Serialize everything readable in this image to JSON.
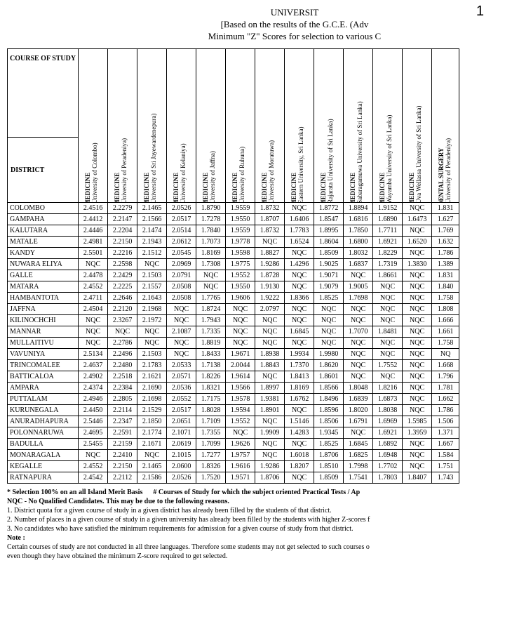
{
  "page_number": "1",
  "title_lines": [
    "UNIVERSIT",
    "[Based on the results of the G.C.E. (Adv",
    "Minimum \"Z\" Scores for selection to various C"
  ],
  "corner_top": "COURSE OF STUDY",
  "corner_left": "DISTRICT",
  "columns": [
    {
      "main": "MEDICINE",
      "sub": "(University of Colombo)"
    },
    {
      "main": "MEDICINE",
      "sub": "(University of Peradeniya)"
    },
    {
      "main": "MEDICINE",
      "sub": "(University of Sri Jayewardenepura)"
    },
    {
      "main": "MEDICINE",
      "sub": "(University of Kelaniya)"
    },
    {
      "main": "MEDICINE",
      "sub": "(University of Jaffna)"
    },
    {
      "main": "MEDICINE",
      "sub": "(University of Ruhuna)"
    },
    {
      "main": "MEDICINE",
      "sub": "(University of Moratuwa)"
    },
    {
      "main": "MEDICINE",
      "sub": "(Eastern University, Sri Lanka)"
    },
    {
      "main": "MEDICINE",
      "sub": "(Rajarata University of Sri Lanka)"
    },
    {
      "main": "MEDICINE",
      "sub": "(Sabaragamuwa University of Sri Lanka)"
    },
    {
      "main": "MEDICINE",
      "sub": "(Wayamba University of Sri Lanka)"
    },
    {
      "main": "MEDICINE",
      "sub": "(Uva Wellassa University of Sri Lanka)"
    },
    {
      "main": "DENTAL SURGERY",
      "sub": "(University of Peradeniya)"
    }
  ],
  "rows": [
    {
      "d": "COLOMBO",
      "v": [
        "2.4516",
        "2.2279",
        "2.1465",
        "2.0526",
        "1.8790",
        "1.9559",
        "1.8732",
        "NQC",
        "1.8772",
        "1.8894",
        "1.9152",
        "NQC",
        "1.831"
      ]
    },
    {
      "d": "GAMPAHA",
      "v": [
        "2.4412",
        "2.2147",
        "2.1566",
        "2.0517",
        "1.7278",
        "1.9550",
        "1.8707",
        "1.6406",
        "1.8547",
        "1.6816",
        "1.6890",
        "1.6473",
        "1.627"
      ]
    },
    {
      "d": "KALUTARA",
      "v": [
        "2.4446",
        "2.2204",
        "2.1474",
        "2.0514",
        "1.7840",
        "1.9559",
        "1.8732",
        "1.7783",
        "1.8995",
        "1.7850",
        "1.7711",
        "NQC",
        "1.769"
      ]
    },
    {
      "d": "MATALE",
      "v": [
        "2.4981",
        "2.2150",
        "2.1943",
        "2.0612",
        "1.7073",
        "1.9778",
        "NQC",
        "1.6524",
        "1.8604",
        "1.6800",
        "1.6921",
        "1.6520",
        "1.632"
      ]
    },
    {
      "d": "KANDY",
      "v": [
        "2.5501",
        "2.2216",
        "2.1512",
        "2.0545",
        "1.8169",
        "1.9598",
        "1.8827",
        "NQC",
        "1.8509",
        "1.8032",
        "1.8229",
        "NQC",
        "1.786"
      ]
    },
    {
      "d": "NUWARA ELIYA",
      "v": [
        "NQC",
        "2.2598",
        "NQC",
        "2.0969",
        "1.7308",
        "1.9775",
        "1.9286",
        "1.4296",
        "1.9025",
        "1.6837",
        "1.7319",
        "1.3830",
        "1.389"
      ]
    },
    {
      "d": "GALLE",
      "v": [
        "2.4478",
        "2.2429",
        "2.1503",
        "2.0791",
        "NQC",
        "1.9552",
        "1.8728",
        "NQC",
        "1.9071",
        "NQC",
        "1.8661",
        "NQC",
        "1.831"
      ]
    },
    {
      "d": "MATARA",
      "v": [
        "2.4552",
        "2.2225",
        "2.1557",
        "2.0508",
        "NQC",
        "1.9550",
        "1.9130",
        "NQC",
        "1.9079",
        "1.9005",
        "NQC",
        "NQC",
        "1.840"
      ]
    },
    {
      "d": "HAMBANTOTA",
      "v": [
        "2.4711",
        "2.2646",
        "2.1643",
        "2.0508",
        "1.7765",
        "1.9606",
        "1.9222",
        "1.8366",
        "1.8525",
        "1.7698",
        "NQC",
        "NQC",
        "1.758"
      ]
    },
    {
      "d": "JAFFNA",
      "v": [
        "2.4504",
        "2.2120",
        "2.1968",
        "NQC",
        "1.8724",
        "NQC",
        "2.0797",
        "NQC",
        "NQC",
        "NQC",
        "NQC",
        "NQC",
        "1.808"
      ]
    },
    {
      "d": "KILINOCHCHI",
      "v": [
        "NQC",
        "2.3267",
        "2.1972",
        "NQC",
        "1.7943",
        "NQC",
        "NQC",
        "NQC",
        "NQC",
        "NQC",
        "NQC",
        "NQC",
        "1.666"
      ]
    },
    {
      "d": "MANNAR",
      "v": [
        "NQC",
        "NQC",
        "NQC",
        "2.1087",
        "1.7335",
        "NQC",
        "NQC",
        "1.6845",
        "NQC",
        "1.7070",
        "1.8481",
        "NQC",
        "1.661"
      ]
    },
    {
      "d": "MULLAITIVU",
      "v": [
        "NQC",
        "2.2786",
        "NQC",
        "NQC",
        "1.8819",
        "NQC",
        "NQC",
        "NQC",
        "NQC",
        "NQC",
        "NQC",
        "NQC",
        "1.758"
      ]
    },
    {
      "d": "VAVUNIYA",
      "v": [
        "2.5134",
        "2.2496",
        "2.1503",
        "NQC",
        "1.8433",
        "1.9671",
        "1.8938",
        "1.9934",
        "1.9980",
        "NQC",
        "NQC",
        "NQC",
        "NQ"
      ]
    },
    {
      "d": "TRINCOMALEE",
      "v": [
        "2.4637",
        "2.2480",
        "2.1783",
        "2.0533",
        "1.7138",
        "2.0044",
        "1.8843",
        "1.7370",
        "1.8620",
        "NQC",
        "1.7552",
        "NQC",
        "1.668"
      ]
    },
    {
      "d": "BATTICALOA",
      "v": [
        "2.4902",
        "2.2518",
        "2.1621",
        "2.0571",
        "1.8226",
        "1.9614",
        "NQC",
        "1.8413",
        "1.8601",
        "NQC",
        "NQC",
        "NQC",
        "1.796"
      ]
    },
    {
      "d": "AMPARA",
      "v": [
        "2.4374",
        "2.2384",
        "2.1690",
        "2.0536",
        "1.8321",
        "1.9566",
        "1.8997",
        "1.8169",
        "1.8566",
        "1.8048",
        "1.8216",
        "NQC",
        "1.781"
      ]
    },
    {
      "d": "PUTTALAM",
      "v": [
        "2.4946",
        "2.2805",
        "2.1698",
        "2.0552",
        "1.7175",
        "1.9578",
        "1.9381",
        "1.6762",
        "1.8496",
        "1.6839",
        "1.6873",
        "NQC",
        "1.662"
      ]
    },
    {
      "d": "KURUNEGALA",
      "v": [
        "2.4450",
        "2.2114",
        "2.1529",
        "2.0517",
        "1.8028",
        "1.9594",
        "1.8901",
        "NQC",
        "1.8596",
        "1.8020",
        "1.8038",
        "NQC",
        "1.786"
      ]
    },
    {
      "d": "ANURADHAPURA",
      "v": [
        "2.5446",
        "2.2347",
        "2.1850",
        "2.0651",
        "1.7109",
        "1.9552",
        "NQC",
        "1.5146",
        "1.8506",
        "1.6791",
        "1.6969",
        "1.5985",
        "1.506"
      ]
    },
    {
      "d": "POLONNARUWA",
      "v": [
        "2.4695",
        "2.2591",
        "2.1774",
        "2.1071",
        "1.7355",
        "NQC",
        "1.9909",
        "1.4283",
        "1.9345",
        "NQC",
        "1.6921",
        "1.3959",
        "1.371"
      ]
    },
    {
      "d": "BADULLA",
      "v": [
        "2.5455",
        "2.2159",
        "2.1671",
        "2.0619",
        "1.7099",
        "1.9626",
        "NQC",
        "NQC",
        "1.8525",
        "1.6845",
        "1.6892",
        "NQC",
        "1.667"
      ]
    },
    {
      "d": "MONARAGALA",
      "v": [
        "NQC",
        "2.2410",
        "NQC",
        "2.1015",
        "1.7277",
        "1.9757",
        "NQC",
        "1.6018",
        "1.8706",
        "1.6825",
        "1.6948",
        "NQC",
        "1.584"
      ]
    },
    {
      "d": "KEGALLE",
      "v": [
        "2.4552",
        "2.2150",
        "2.1465",
        "2.0600",
        "1.8326",
        "1.9616",
        "1.9286",
        "1.8207",
        "1.8510",
        "1.7998",
        "1.7702",
        "NQC",
        "1.751"
      ]
    },
    {
      "d": "RATNAPURA",
      "v": [
        "2.4542",
        "2.2112",
        "2.1586",
        "2.0526",
        "1.7520",
        "1.9571",
        "1.8706",
        "NQC",
        "1.8509",
        "1.7541",
        "1.7803",
        "1.8407",
        "1.743"
      ]
    }
  ],
  "footnotes": {
    "line1a": "* Selection 100% on an all Island Merit Basis",
    "line1b": "# Courses of Study for which the subject oriented Practical Tests / Ap",
    "line2": "NQC - No Qualified Candidates. This may be due to the following reasons.",
    "n1": "1.  District quota for a given course of study in a given district has already been filled by the students of that district.",
    "n2": "2.  Number of places in a given course of study in a given university has already been filled by the students with higher Z-scores f",
    "n3": "3.  No candidates who have satisfied the minimum requirements for admission for a given course of study from that district.",
    "note_label": "Note :",
    "note_body1": "Certain courses of study are not conducted in all three languages. Therefore some students may not get selected to such courses o",
    "note_body2": "even though they have obtained the minimum Z-score required to get selected."
  }
}
